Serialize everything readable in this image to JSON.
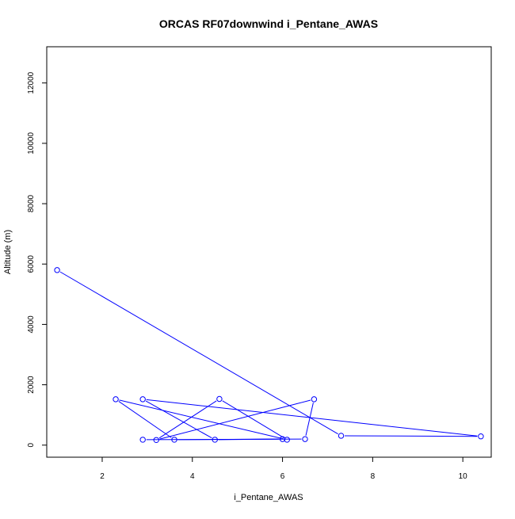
{
  "chart_data": {
    "type": "line",
    "title": "ORCAS RF07downwind i_Pentane_AWAS",
    "xlabel": "i_Pentane_AWAS",
    "ylabel": "Altitude (m)",
    "xlim": [
      0.77,
      10.63
    ],
    "ylim": [
      -400,
      13200
    ],
    "x_ticks": [
      2,
      4,
      6,
      8,
      10
    ],
    "x_tick_labels": [
      "2",
      "4",
      "6",
      "8",
      "10"
    ],
    "y_ticks": [
      0,
      2000,
      4000,
      6000,
      8000,
      10000,
      12000
    ],
    "y_tick_labels": [
      "0",
      "2000",
      "4000",
      "6000",
      "8000",
      "10000",
      "12000"
    ],
    "grid": false,
    "series": [
      {
        "color": "#0000ff",
        "markers": "open-circle",
        "points": [
          {
            "x": 1.0,
            "y": 5800
          },
          {
            "x": 7.3,
            "y": 310
          },
          {
            "x": 10.4,
            "y": 290
          },
          {
            "x": 2.9,
            "y": 1520
          },
          {
            "x": 4.5,
            "y": 180
          },
          {
            "x": 6.0,
            "y": 200
          },
          {
            "x": 3.6,
            "y": 180
          },
          {
            "x": 2.3,
            "y": 1520
          },
          {
            "x": 6.1,
            "y": 180
          },
          {
            "x": 4.6,
            "y": 1530
          },
          {
            "x": 3.2,
            "y": 170
          },
          {
            "x": 6.7,
            "y": 1520
          },
          {
            "x": 6.5,
            "y": 200
          },
          {
            "x": 2.9,
            "y": 180
          }
        ]
      }
    ]
  }
}
